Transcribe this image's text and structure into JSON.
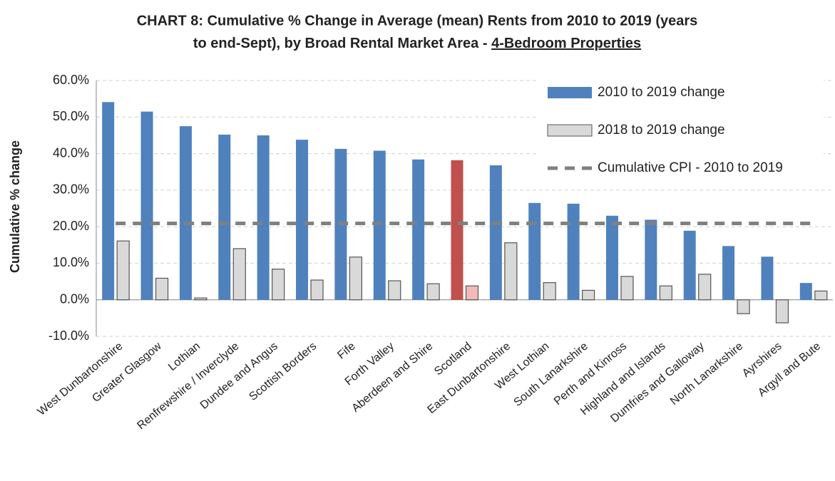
{
  "chart_data": {
    "type": "bar",
    "title": [
      "CHART 8:   Cumulative % Change in Average (mean) Rents from 2010 to 2019 (years",
      "to end-Sept), by Broad Rental Market Area - ",
      "4-Bedroom Properties"
    ],
    "y_label": "Cumulative % change",
    "categories": [
      "West Dunbartonshire",
      "Greater Glasgow",
      "Lothian",
      "Renfrewshire / Inverclyde",
      "Dundee and Angus",
      "Scottish Borders",
      "Fife",
      "Forth Valley",
      "Aberdeen and Shire",
      "Scotland",
      "East Dunbartonshire",
      "West Lothian",
      "South Lanarkshire",
      "Perth and Kinross",
      "Highland and Islands",
      "Dumfries and Galloway",
      "North Lanarkshire",
      "Ayrshires",
      "Argyll and Bute"
    ],
    "series": [
      {
        "name": "2010 to 2019 change",
        "type": "bar",
        "color": "#4f81bd",
        "highlight_color": "#c0504d",
        "values": [
          54.1,
          51.5,
          47.5,
          45.2,
          45.0,
          43.8,
          41.3,
          40.8,
          38.4,
          38.2,
          36.8,
          26.5,
          26.3,
          23.0,
          21.9,
          18.9,
          14.7,
          11.8,
          4.6
        ]
      },
      {
        "name": "2018 to 2019 change",
        "type": "bar",
        "color": "#d9d9d9",
        "highlight_color": "#f2b9b9",
        "values": [
          16.1,
          5.9,
          0.5,
          14.0,
          8.4,
          5.4,
          11.7,
          5.2,
          4.4,
          3.8,
          15.6,
          4.7,
          2.6,
          6.4,
          3.8,
          7.0,
          -3.8,
          -6.3,
          2.4
        ]
      },
      {
        "name": "Cumulative CPI - 2010 to 2019",
        "type": "line",
        "color": "#808080",
        "values": [
          20.9,
          20.9,
          20.9,
          20.9,
          20.9,
          20.9,
          20.9,
          20.9,
          20.9,
          20.9,
          20.9,
          20.9,
          20.9,
          20.9,
          20.9,
          20.9,
          20.9,
          20.9,
          20.9
        ]
      }
    ],
    "highlight_category": "Scotland",
    "ylim": [
      -10,
      60
    ],
    "yticks": [
      {
        "value": -10,
        "label": "-10.0%"
      },
      {
        "value": 0,
        "label": "0.0%"
      },
      {
        "value": 10,
        "label": "10.0%"
      },
      {
        "value": 20,
        "label": "20.0%"
      },
      {
        "value": 30,
        "label": "30.0%"
      },
      {
        "value": 40,
        "label": "40.0%"
      },
      {
        "value": 50,
        "label": "50.0%"
      },
      {
        "value": 60,
        "label": "60.0%"
      }
    ],
    "grid": true,
    "legend": "top-right"
  }
}
